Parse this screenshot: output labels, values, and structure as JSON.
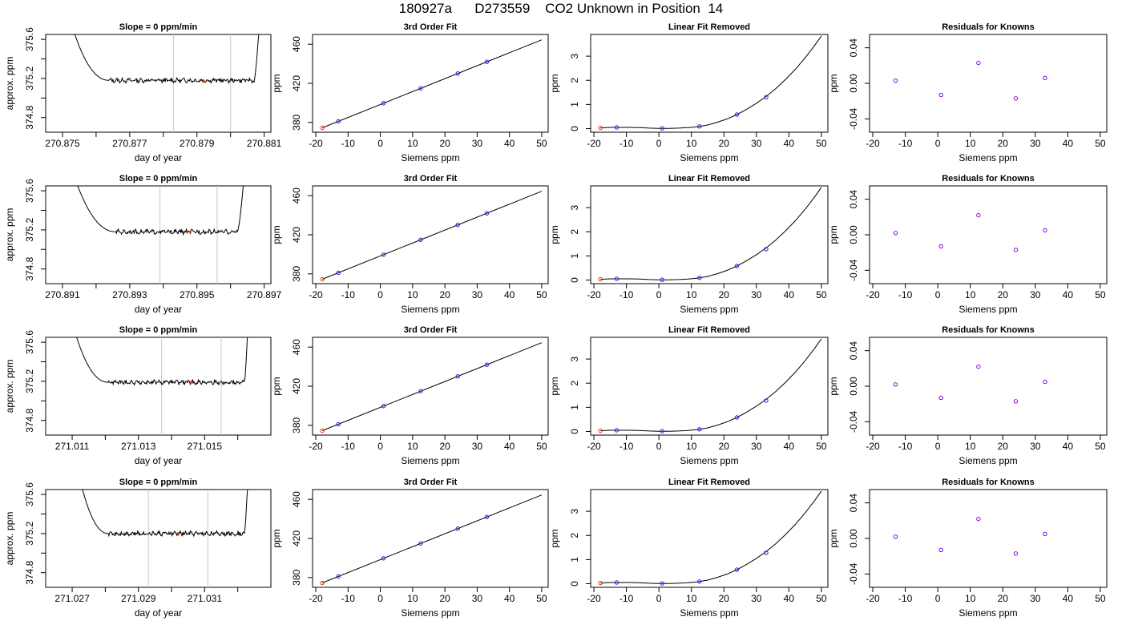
{
  "title": "180927a      D273559    CO2 Unknown in Position  14",
  "colors": {
    "known_point": "#2222ee",
    "unknown_point": "#ee3300",
    "residual_point": "#8800ee",
    "time_marker": "#c8c8c8",
    "line": "#000000"
  },
  "chart_data": [
    {
      "type": "line",
      "title": "Slope =  0  ppm/min",
      "xlabel": "day of year",
      "ylabel": "approx. ppm",
      "xticks": [
        "270.875",
        "270.877",
        "270.879",
        "270.881"
      ],
      "xtick_values": [
        270.875,
        270.877,
        270.879,
        270.881
      ],
      "xlim": [
        270.8745,
        270.8812
      ],
      "yticks": [
        "374.8",
        "375.2",
        "375.6"
      ],
      "ylim": [
        374.65,
        375.65
      ],
      "x_start": 270.8746,
      "x_end": 270.881,
      "plateau_start": 270.8764,
      "plateau_end": 270.8807,
      "plateau_level": 375.18,
      "sample_marks": [
        270.8783,
        270.88
      ],
      "sample_point": {
        "x": 270.8792,
        "y": 375.17
      }
    },
    {
      "type": "line",
      "title": "3rd Order Fit",
      "xlabel": "Siemens ppm",
      "ylabel": "ppm",
      "xticks": [
        "-20",
        "-10",
        "0",
        "10",
        "20",
        "30",
        "40",
        "50"
      ],
      "xtick_values": [
        -20,
        -10,
        0,
        10,
        20,
        30,
        40,
        50
      ],
      "xlim": [
        -21,
        52
      ],
      "yticks": [
        "380",
        "420",
        "460"
      ],
      "ytick_values": [
        380,
        420,
        460
      ],
      "ylim": [
        370,
        470
      ],
      "fit_line": {
        "x": [
          -18,
          50
        ],
        "y": [
          374.5,
          464.5
        ]
      },
      "known_points": [
        {
          "x": -13,
          "y": 381.1
        },
        {
          "x": 1,
          "y": 399.7
        },
        {
          "x": 12.5,
          "y": 414.9
        },
        {
          "x": 24,
          "y": 430.1
        },
        {
          "x": 33,
          "y": 442.0
        }
      ],
      "unknown_point": {
        "x": -18,
        "y": 374.5
      }
    },
    {
      "type": "line",
      "title": "Linear Fit Removed",
      "xlabel": "Siemens ppm",
      "ylabel": "ppm",
      "xticks": [
        "-20",
        "-10",
        "0",
        "10",
        "20",
        "30",
        "40",
        "50"
      ],
      "xtick_values": [
        -20,
        -10,
        0,
        10,
        20,
        30,
        40,
        50
      ],
      "xlim": [
        -21,
        52
      ],
      "yticks": [
        "0",
        "1",
        "2",
        "3"
      ],
      "ytick_values": [
        0,
        1,
        2,
        3
      ],
      "ylim": [
        -0.15,
        3.9
      ],
      "curve_x": [
        -18,
        -15,
        -12,
        -9,
        -6,
        -3,
        0,
        3,
        6,
        9,
        12,
        15,
        18,
        21,
        24,
        27,
        30,
        33,
        36,
        39,
        42,
        45,
        48,
        50
      ],
      "curve_y": [
        0.03,
        0.05,
        0.05,
        0.05,
        0.04,
        0.02,
        0.01,
        0.01,
        0.02,
        0.04,
        0.08,
        0.15,
        0.26,
        0.4,
        0.58,
        0.8,
        1.05,
        1.33,
        1.66,
        2.04,
        2.46,
        2.93,
        3.46,
        3.84
      ],
      "known_points": [
        {
          "x": -13,
          "y": 0.05
        },
        {
          "x": 1,
          "y": 0.01
        },
        {
          "x": 12.5,
          "y": 0.09
        },
        {
          "x": 24,
          "y": 0.58
        },
        {
          "x": 33,
          "y": 1.3
        }
      ],
      "unknown_point": {
        "x": -18,
        "y": 0.03
      }
    },
    {
      "type": "scatter",
      "title": "Residuals for Knowns",
      "xlabel": "Siemens ppm",
      "ylabel": "ppm",
      "xticks": [
        "-20",
        "-10",
        "0",
        "10",
        "20",
        "30",
        "40",
        "50"
      ],
      "xtick_values": [
        -20,
        -10,
        0,
        10,
        20,
        30,
        40,
        50
      ],
      "xlim": [
        -21,
        52
      ],
      "yticks": [
        "-0.04",
        "0.00",
        "0.04"
      ],
      "ytick_values": [
        -0.04,
        0,
        0.04
      ],
      "ylim": [
        -0.055,
        0.055
      ],
      "residual_points": [
        {
          "x": -13,
          "y": 0.003
        },
        {
          "x": 1,
          "y": -0.013
        },
        {
          "x": 12.5,
          "y": 0.023
        },
        {
          "x": 24,
          "y": -0.017
        },
        {
          "x": 33,
          "y": 0.006
        }
      ]
    },
    {
      "type": "line",
      "title": "Slope =  0  ppm/min",
      "xlabel": "day of year",
      "ylabel": "approx. ppm",
      "xticks": [
        "270.891",
        "270.893",
        "270.895",
        "270.897"
      ],
      "xtick_values": [
        270.891,
        270.893,
        270.895,
        270.897
      ],
      "xlim": [
        270.8905,
        270.8972
      ],
      "yticks": [
        "374.8",
        "375.2",
        "375.6"
      ],
      "ylim": [
        374.65,
        375.65
      ],
      "x_start": 270.8906,
      "x_end": 270.8966,
      "plateau_start": 270.8926,
      "plateau_end": 270.8962,
      "plateau_level": 375.18,
      "sample_marks": [
        270.8939,
        270.8956
      ],
      "sample_point": {
        "x": 270.8948,
        "y": 375.18
      }
    },
    {
      "type": "line",
      "title": "3rd Order Fit",
      "xlabel": "Siemens ppm",
      "ylabel": "ppm",
      "xticks": [
        "-20",
        "-10",
        "0",
        "10",
        "20",
        "30",
        "40",
        "50"
      ],
      "xtick_values": [
        -20,
        -10,
        0,
        10,
        20,
        30,
        40,
        50
      ],
      "xlim": [
        -21,
        52
      ],
      "yticks": [
        "380",
        "420",
        "460"
      ],
      "ytick_values": [
        380,
        420,
        460
      ],
      "ylim": [
        370,
        470
      ],
      "fit_line": {
        "x": [
          -18,
          50
        ],
        "y": [
          374.5,
          464.5
        ]
      },
      "known_points": [
        {
          "x": -13,
          "y": 381.1
        },
        {
          "x": 1,
          "y": 399.7
        },
        {
          "x": 12.5,
          "y": 414.9
        },
        {
          "x": 24,
          "y": 430.1
        },
        {
          "x": 33,
          "y": 442.0
        }
      ],
      "unknown_point": {
        "x": -18,
        "y": 374.5
      }
    },
    {
      "type": "line",
      "title": "Linear Fit Removed",
      "xlabel": "Siemens ppm",
      "ylabel": "ppm",
      "xticks": [
        "-20",
        "-10",
        "0",
        "10",
        "20",
        "30",
        "40",
        "50"
      ],
      "xtick_values": [
        -20,
        -10,
        0,
        10,
        20,
        30,
        40,
        50
      ],
      "xlim": [
        -21,
        52
      ],
      "yticks": [
        "0",
        "1",
        "2",
        "3"
      ],
      "ytick_values": [
        0,
        1,
        2,
        3
      ],
      "ylim": [
        -0.15,
        3.9
      ],
      "curve_x": [
        -18,
        -15,
        -12,
        -9,
        -6,
        -3,
        0,
        3,
        6,
        9,
        12,
        15,
        18,
        21,
        24,
        27,
        30,
        33,
        36,
        39,
        42,
        45,
        48,
        50
      ],
      "curve_y": [
        0.03,
        0.05,
        0.05,
        0.05,
        0.04,
        0.02,
        0.01,
        0.01,
        0.02,
        0.04,
        0.08,
        0.15,
        0.26,
        0.4,
        0.58,
        0.8,
        1.05,
        1.33,
        1.66,
        2.04,
        2.46,
        2.93,
        3.46,
        3.84
      ],
      "known_points": [
        {
          "x": -13,
          "y": 0.05
        },
        {
          "x": 1,
          "y": 0.01
        },
        {
          "x": 12.5,
          "y": 0.09
        },
        {
          "x": 24,
          "y": 0.58
        },
        {
          "x": 33,
          "y": 1.28
        }
      ],
      "unknown_point": {
        "x": -18,
        "y": 0.03
      }
    },
    {
      "type": "scatter",
      "title": "Residuals for Knowns",
      "xlabel": "Siemens ppm",
      "ylabel": "ppm",
      "xticks": [
        "-20",
        "-10",
        "0",
        "10",
        "20",
        "30",
        "40",
        "50"
      ],
      "xtick_values": [
        -20,
        -10,
        0,
        10,
        20,
        30,
        40,
        50
      ],
      "xlim": [
        -21,
        52
      ],
      "yticks": [
        "-0.04",
        "0.00",
        "0.04"
      ],
      "ytick_values": [
        -0.04,
        0,
        0.04
      ],
      "ylim": [
        -0.055,
        0.055
      ],
      "residual_points": [
        {
          "x": -13,
          "y": 0.002
        },
        {
          "x": 1,
          "y": -0.013
        },
        {
          "x": 12.5,
          "y": 0.022
        },
        {
          "x": 24,
          "y": -0.017
        },
        {
          "x": 33,
          "y": 0.005
        }
      ]
    },
    {
      "type": "line",
      "title": "Slope =  0  ppm/min",
      "xlabel": "day of year",
      "ylabel": "approx. ppm",
      "xticks": [
        "271.011",
        "271.013",
        "271.015"
      ],
      "xtick_values": [
        271.011,
        271.013,
        271.015
      ],
      "xlim": [
        271.0102,
        271.017
      ],
      "yticks": [
        "374.8",
        "375.2",
        "375.6"
      ],
      "ylim": [
        374.65,
        375.65
      ],
      "x_start": 271.0104,
      "x_end": 271.0164,
      "plateau_start": 271.0121,
      "plateau_end": 271.0162,
      "plateau_level": 375.19,
      "sample_marks": [
        271.0137,
        271.0155
      ],
      "sample_point": {
        "x": 271.0146,
        "y": 375.19
      }
    },
    {
      "type": "line",
      "title": "3rd Order Fit",
      "xlabel": "Siemens ppm",
      "ylabel": "ppm",
      "xticks": [
        "-20",
        "-10",
        "0",
        "10",
        "20",
        "30",
        "40",
        "50"
      ],
      "xtick_values": [
        -20,
        -10,
        0,
        10,
        20,
        30,
        40,
        50
      ],
      "xlim": [
        -21,
        52
      ],
      "yticks": [
        "380",
        "420",
        "460"
      ],
      "ytick_values": [
        380,
        420,
        460
      ],
      "ylim": [
        370,
        470
      ],
      "fit_line": {
        "x": [
          -18,
          50
        ],
        "y": [
          374.5,
          464.5
        ]
      },
      "known_points": [
        {
          "x": -13,
          "y": 381.1
        },
        {
          "x": 1,
          "y": 399.7
        },
        {
          "x": 12.5,
          "y": 414.9
        },
        {
          "x": 24,
          "y": 430.1
        },
        {
          "x": 33,
          "y": 442.0
        }
      ],
      "unknown_point": {
        "x": -18,
        "y": 374.5
      }
    },
    {
      "type": "line",
      "title": "Linear Fit Removed",
      "xlabel": "Siemens ppm",
      "ylabel": "ppm",
      "xticks": [
        "-20",
        "-10",
        "0",
        "10",
        "20",
        "30",
        "40",
        "50"
      ],
      "xtick_values": [
        -20,
        -10,
        0,
        10,
        20,
        30,
        40,
        50
      ],
      "xlim": [
        -21,
        52
      ],
      "yticks": [
        "0",
        "1",
        "2",
        "3"
      ],
      "ytick_values": [
        0,
        1,
        2,
        3
      ],
      "ylim": [
        -0.15,
        3.9
      ],
      "curve_x": [
        -18,
        -15,
        -12,
        -9,
        -6,
        -3,
        0,
        3,
        6,
        9,
        12,
        15,
        18,
        21,
        24,
        27,
        30,
        33,
        36,
        39,
        42,
        45,
        48,
        50
      ],
      "curve_y": [
        0.03,
        0.05,
        0.05,
        0.05,
        0.04,
        0.02,
        0.01,
        0.01,
        0.02,
        0.04,
        0.08,
        0.15,
        0.26,
        0.4,
        0.58,
        0.8,
        1.05,
        1.33,
        1.66,
        2.04,
        2.46,
        2.93,
        3.46,
        3.84
      ],
      "known_points": [
        {
          "x": -13,
          "y": 0.05
        },
        {
          "x": 1,
          "y": 0.01
        },
        {
          "x": 12.5,
          "y": 0.09
        },
        {
          "x": 24,
          "y": 0.58
        },
        {
          "x": 33,
          "y": 1.28
        }
      ],
      "unknown_point": {
        "x": -18,
        "y": 0.03
      }
    },
    {
      "type": "scatter",
      "title": "Residuals for Knowns",
      "xlabel": "Siemens ppm",
      "ylabel": "ppm",
      "xticks": [
        "-20",
        "-10",
        "0",
        "10",
        "20",
        "30",
        "40",
        "50"
      ],
      "xtick_values": [
        -20,
        -10,
        0,
        10,
        20,
        30,
        40,
        50
      ],
      "xlim": [
        -21,
        52
      ],
      "yticks": [
        "-0.04",
        "0.00",
        "0.04"
      ],
      "ytick_values": [
        -0.04,
        0,
        0.04
      ],
      "ylim": [
        -0.055,
        0.055
      ],
      "residual_points": [
        {
          "x": -13,
          "y": 0.002
        },
        {
          "x": 1,
          "y": -0.013
        },
        {
          "x": 12.5,
          "y": 0.022
        },
        {
          "x": 24,
          "y": -0.017
        },
        {
          "x": 33,
          "y": 0.005
        }
      ]
    },
    {
      "type": "line",
      "title": "Slope =  0  ppm/min",
      "xlabel": "day of year",
      "ylabel": "approx. ppm",
      "xticks": [
        "271.027",
        "271.029",
        "271.031"
      ],
      "xtick_values": [
        271.027,
        271.029,
        271.031
      ],
      "xlim": [
        271.0262,
        271.033
      ],
      "yticks": [
        "374.8",
        "375.2",
        "375.6"
      ],
      "ylim": [
        374.65,
        375.65
      ],
      "x_start": 271.0267,
      "x_end": 271.0324,
      "plateau_start": 271.0281,
      "plateau_end": 271.0322,
      "plateau_level": 375.2,
      "sample_marks": [
        271.0293,
        271.0311
      ],
      "sample_point": {
        "x": 271.0302,
        "y": 375.2
      }
    },
    {
      "type": "line",
      "title": "3rd Order Fit",
      "xlabel": "Siemens ppm",
      "ylabel": "ppm",
      "xticks": [
        "-20",
        "-10",
        "0",
        "10",
        "20",
        "30",
        "40",
        "50"
      ],
      "xtick_values": [
        -20,
        -10,
        0,
        10,
        20,
        30,
        40,
        50
      ],
      "xlim": [
        -21,
        52
      ],
      "yticks": [
        "380",
        "420",
        "460"
      ],
      "ytick_values": [
        380,
        420,
        460
      ],
      "ylim": [
        370,
        470
      ],
      "fit_line": {
        "x": [
          -18,
          50
        ],
        "y": [
          374.5,
          464.5
        ]
      },
      "known_points": [
        {
          "x": -13,
          "y": 381.1
        },
        {
          "x": 1,
          "y": 399.7
        },
        {
          "x": 12.5,
          "y": 414.9
        },
        {
          "x": 24,
          "y": 430.1
        },
        {
          "x": 33,
          "y": 442.0
        }
      ],
      "unknown_point": {
        "x": -18,
        "y": 374.5
      }
    },
    {
      "type": "line",
      "title": "Linear Fit Removed",
      "xlabel": "Siemens ppm",
      "ylabel": "ppm",
      "xticks": [
        "-20",
        "-10",
        "0",
        "10",
        "20",
        "30",
        "40",
        "50"
      ],
      "xtick_values": [
        -20,
        -10,
        0,
        10,
        20,
        30,
        40,
        50
      ],
      "xlim": [
        -21,
        52
      ],
      "yticks": [
        "0",
        "1",
        "2",
        "3"
      ],
      "ytick_values": [
        0,
        1,
        2,
        3
      ],
      "ylim": [
        -0.15,
        3.9
      ],
      "curve_x": [
        -18,
        -15,
        -12,
        -9,
        -6,
        -3,
        0,
        3,
        6,
        9,
        12,
        15,
        18,
        21,
        24,
        27,
        30,
        33,
        36,
        39,
        42,
        45,
        48,
        50
      ],
      "curve_y": [
        0.03,
        0.05,
        0.05,
        0.05,
        0.04,
        0.02,
        0.01,
        0.01,
        0.02,
        0.04,
        0.08,
        0.15,
        0.26,
        0.4,
        0.58,
        0.8,
        1.05,
        1.33,
        1.66,
        2.04,
        2.46,
        2.93,
        3.46,
        3.84
      ],
      "known_points": [
        {
          "x": -13,
          "y": 0.05
        },
        {
          "x": 1,
          "y": 0.01
        },
        {
          "x": 12.5,
          "y": 0.09
        },
        {
          "x": 24,
          "y": 0.58
        },
        {
          "x": 33,
          "y": 1.28
        }
      ],
      "unknown_point": {
        "x": -18,
        "y": 0.03
      }
    },
    {
      "type": "scatter",
      "title": "Residuals for Knowns",
      "xlabel": "Siemens ppm",
      "ylabel": "ppm",
      "xticks": [
        "-20",
        "-10",
        "0",
        "10",
        "20",
        "30",
        "40",
        "50"
      ],
      "xtick_values": [
        -20,
        -10,
        0,
        10,
        20,
        30,
        40,
        50
      ],
      "xlim": [
        -21,
        52
      ],
      "yticks": [
        "-0.04",
        "0.00",
        "0.04"
      ],
      "ytick_values": [
        -0.04,
        0,
        0.04
      ],
      "ylim": [
        -0.055,
        0.055
      ],
      "residual_points": [
        {
          "x": -13,
          "y": 0.002
        },
        {
          "x": 1,
          "y": -0.013
        },
        {
          "x": 12.5,
          "y": 0.022
        },
        {
          "x": 24,
          "y": -0.017
        },
        {
          "x": 33,
          "y": 0.005
        }
      ]
    }
  ]
}
